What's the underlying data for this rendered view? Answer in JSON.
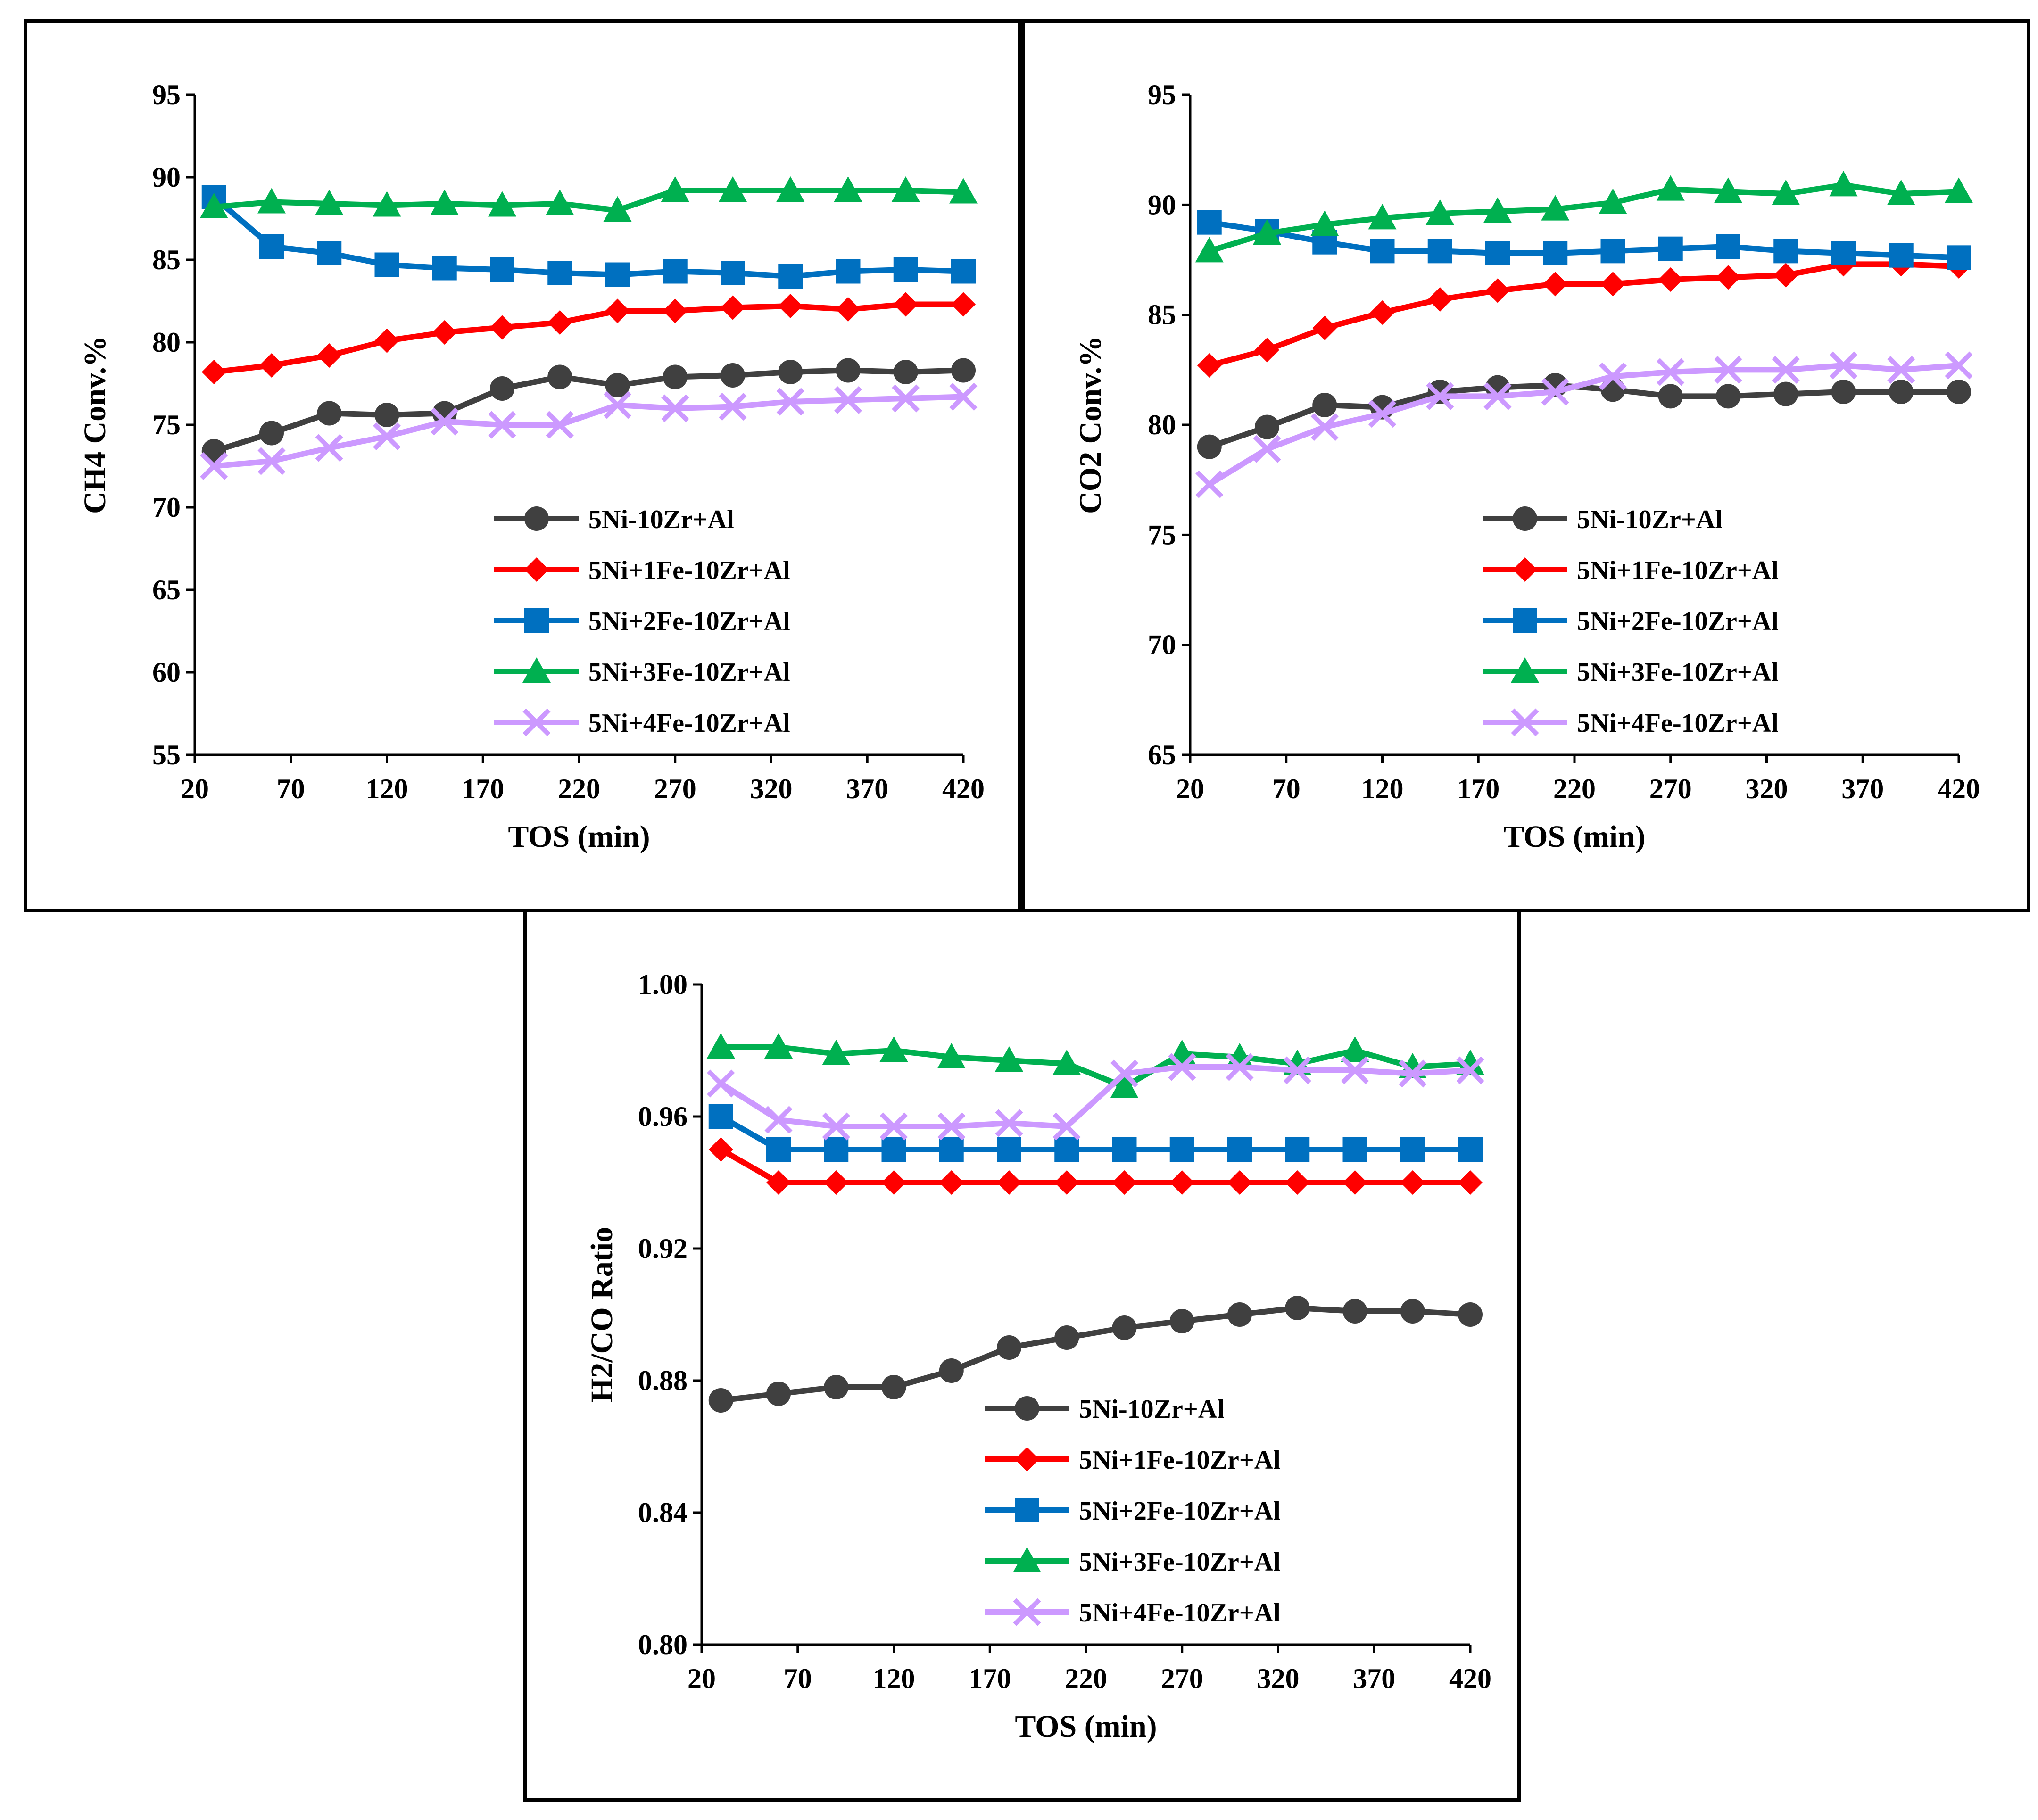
{
  "chart_data": [
    {
      "type": "line",
      "id": "ch4",
      "title": "",
      "xlabel": "TOS (min)",
      "ylabel": "CH4 Conv.%",
      "xlim": [
        20,
        420
      ],
      "ylim": [
        55,
        95
      ],
      "xticks": [
        20,
        70,
        120,
        170,
        220,
        270,
        320,
        370,
        420
      ],
      "xtick_labels": [
        "20",
        "70",
        "120",
        "170",
        "220",
        "270",
        "320",
        "370",
        "420"
      ],
      "yticks": [
        55,
        60,
        65,
        70,
        75,
        80,
        85,
        90,
        95
      ],
      "ytick_labels": [
        "55",
        "60",
        "65",
        "70",
        "75",
        "80",
        "85",
        "90",
        "95"
      ],
      "legend_position": "bottom-right",
      "x": [
        30,
        60,
        90,
        120,
        150,
        180,
        210,
        240,
        270,
        300,
        330,
        360,
        390,
        420
      ],
      "series": [
        {
          "name": "5Ni-10Zr+Al",
          "color": "#404040",
          "marker": "circle",
          "values": [
            73.4,
            74.5,
            75.7,
            75.6,
            75.7,
            77.2,
            77.9,
            77.4,
            77.9,
            78.0,
            78.2,
            78.3,
            78.2,
            78.3
          ]
        },
        {
          "name": "5Ni+1Fe-10Zr+Al",
          "color": "#ff0000",
          "marker": "diamond",
          "values": [
            78.2,
            78.6,
            79.2,
            80.1,
            80.6,
            80.9,
            81.2,
            81.9,
            81.9,
            82.1,
            82.2,
            82.0,
            82.3,
            82.3
          ]
        },
        {
          "name": "5Ni+2Fe-10Zr+Al",
          "color": "#0070c0",
          "marker": "square",
          "values": [
            88.8,
            85.8,
            85.4,
            84.7,
            84.5,
            84.4,
            84.2,
            84.1,
            84.3,
            84.2,
            84.0,
            84.3,
            84.4,
            84.3
          ]
        },
        {
          "name": "5Ni+3Fe-10Zr+Al",
          "color": "#00b050",
          "marker": "triangle",
          "values": [
            88.2,
            88.5,
            88.4,
            88.3,
            88.4,
            88.3,
            88.4,
            88.0,
            89.2,
            89.2,
            89.2,
            89.2,
            89.2,
            89.1
          ]
        },
        {
          "name": "5Ni+4Fe-10Zr+Al",
          "color": "#cc99ff",
          "marker": "x",
          "values": [
            72.5,
            72.8,
            73.6,
            74.3,
            75.2,
            75.0,
            75.0,
            76.2,
            76.0,
            76.1,
            76.4,
            76.5,
            76.6,
            76.7
          ]
        }
      ]
    },
    {
      "type": "line",
      "id": "co2",
      "title": "",
      "xlabel": "TOS (min)",
      "ylabel": "CO2 Conv.%",
      "xlim": [
        20,
        420
      ],
      "ylim": [
        65,
        95
      ],
      "xticks": [
        20,
        70,
        120,
        170,
        220,
        270,
        320,
        370,
        420
      ],
      "xtick_labels": [
        "20",
        "70",
        "120",
        "170",
        "220",
        "270",
        "320",
        "370",
        "420"
      ],
      "yticks": [
        65,
        70,
        75,
        80,
        85,
        90,
        95
      ],
      "ytick_labels": [
        "65",
        "70",
        "75",
        "80",
        "85",
        "90",
        "95"
      ],
      "legend_position": "bottom-right",
      "x": [
        30,
        60,
        90,
        120,
        150,
        180,
        210,
        240,
        270,
        300,
        330,
        360,
        390,
        420
      ],
      "series": [
        {
          "name": "5Ni-10Zr+Al",
          "color": "#404040",
          "marker": "circle",
          "values": [
            79.0,
            79.9,
            80.9,
            80.8,
            81.5,
            81.7,
            81.8,
            81.6,
            81.3,
            81.3,
            81.4,
            81.5,
            81.5,
            81.5
          ]
        },
        {
          "name": "5Ni+1Fe-10Zr+Al",
          "color": "#ff0000",
          "marker": "diamond",
          "values": [
            82.7,
            83.4,
            84.4,
            85.1,
            85.7,
            86.1,
            86.4,
            86.4,
            86.6,
            86.7,
            86.8,
            87.3,
            87.3,
            87.2
          ]
        },
        {
          "name": "5Ni+2Fe-10Zr+Al",
          "color": "#0070c0",
          "marker": "square",
          "values": [
            89.2,
            88.8,
            88.3,
            87.9,
            87.9,
            87.8,
            87.8,
            87.9,
            88.0,
            88.1,
            87.9,
            87.8,
            87.7,
            87.6
          ]
        },
        {
          "name": "5Ni+3Fe-10Zr+Al",
          "color": "#00b050",
          "marker": "triangle",
          "values": [
            87.9,
            88.7,
            89.1,
            89.4,
            89.6,
            89.7,
            89.8,
            90.1,
            90.7,
            90.6,
            90.5,
            90.9,
            90.5,
            90.6
          ]
        },
        {
          "name": "5Ni+4Fe-10Zr+Al",
          "color": "#cc99ff",
          "marker": "x",
          "values": [
            77.3,
            78.9,
            79.9,
            80.5,
            81.3,
            81.3,
            81.5,
            82.2,
            82.4,
            82.5,
            82.5,
            82.7,
            82.5,
            82.7
          ]
        }
      ]
    },
    {
      "type": "line",
      "id": "h2co",
      "title": "",
      "xlabel": "TOS (min)",
      "ylabel": "H2/CO Ratio",
      "xlim": [
        20,
        420
      ],
      "ylim": [
        0.8,
        1.0
      ],
      "xticks": [
        20,
        70,
        120,
        170,
        220,
        270,
        320,
        370,
        420
      ],
      "xtick_labels": [
        "20",
        "70",
        "120",
        "170",
        "220",
        "270",
        "320",
        "370",
        "420"
      ],
      "yticks": [
        0.8,
        0.84,
        0.88,
        0.92,
        0.96,
        1.0
      ],
      "ytick_labels": [
        "0.80",
        "0.84",
        "0.88",
        "0.92",
        "0.96",
        "1.00"
      ],
      "legend_position": "bottom-right",
      "x": [
        30,
        60,
        90,
        120,
        150,
        180,
        210,
        240,
        270,
        300,
        330,
        360,
        390,
        420
      ],
      "series": [
        {
          "name": "5Ni-10Zr+Al",
          "color": "#404040",
          "marker": "circle",
          "values": [
            0.874,
            0.876,
            0.878,
            0.878,
            0.883,
            0.89,
            0.893,
            0.896,
            0.898,
            0.9,
            0.902,
            0.901,
            0.901,
            0.9
          ]
        },
        {
          "name": "5Ni+1Fe-10Zr+Al",
          "color": "#ff0000",
          "marker": "diamond",
          "values": [
            0.95,
            0.94,
            0.94,
            0.94,
            0.94,
            0.94,
            0.94,
            0.94,
            0.94,
            0.94,
            0.94,
            0.94,
            0.94,
            0.94
          ]
        },
        {
          "name": "5Ni+2Fe-10Zr+Al",
          "color": "#0070c0",
          "marker": "square",
          "values": [
            0.96,
            0.95,
            0.95,
            0.95,
            0.95,
            0.95,
            0.95,
            0.95,
            0.95,
            0.95,
            0.95,
            0.95,
            0.95,
            0.95
          ]
        },
        {
          "name": "5Ni+3Fe-10Zr+Al",
          "color": "#00b050",
          "marker": "triangle",
          "values": [
            0.981,
            0.981,
            0.979,
            0.98,
            0.978,
            0.977,
            0.976,
            0.969,
            0.979,
            0.978,
            0.976,
            0.98,
            0.975,
            0.976
          ]
        },
        {
          "name": "5Ni+4Fe-10Zr+Al",
          "color": "#cc99ff",
          "marker": "x",
          "values": [
            0.97,
            0.959,
            0.957,
            0.957,
            0.957,
            0.958,
            0.957,
            0.973,
            0.975,
            0.975,
            0.974,
            0.974,
            0.973,
            0.974
          ]
        }
      ]
    }
  ]
}
